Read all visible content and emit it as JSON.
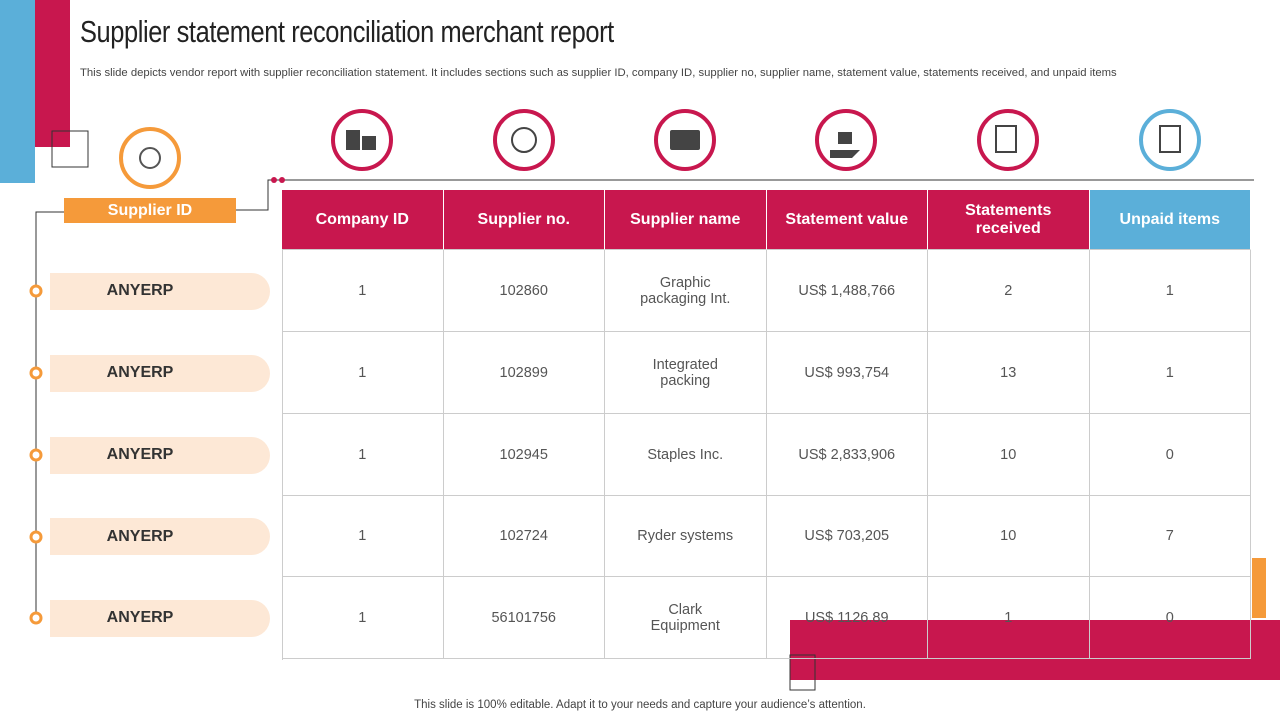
{
  "header": {
    "title": "Supplier statement reconciliation merchant report",
    "subtitle": "This slide depicts vendor report with supplier reconciliation statement. It includes sections such as supplier ID, company ID,  supplier no, supplier name, statement value, statements received, and unpaid items"
  },
  "supplier_id": {
    "label": "Supplier ID",
    "rows": [
      "ANYERP",
      "ANYERP",
      "ANYERP",
      "ANYERP",
      "ANYERP"
    ]
  },
  "table": {
    "columns": [
      "Company ID",
      "Supplier no.",
      "Supplier name",
      "Statement value",
      "Statements received",
      "Unpaid items"
    ],
    "rows": [
      [
        "1",
        "102860",
        "Graphic packaging Int.",
        "US$ 1,488,766",
        "2",
        "1"
      ],
      [
        "1",
        "102899",
        "Integrated packing",
        "US$ 993,754",
        "13",
        "1"
      ],
      [
        "1",
        "102945",
        "Staples Inc.",
        "US$ 2,833,906",
        "10",
        "0"
      ],
      [
        "1",
        "102724",
        "Ryder systems",
        "US$ 703,205",
        "10",
        "7"
      ],
      [
        "1",
        "56101756",
        "Clark Equipment",
        "US$ 1126.89",
        "1",
        "0"
      ]
    ]
  },
  "footer": "This slide is 100% editable. Adapt it to your needs and capture your audience’s attention."
}
